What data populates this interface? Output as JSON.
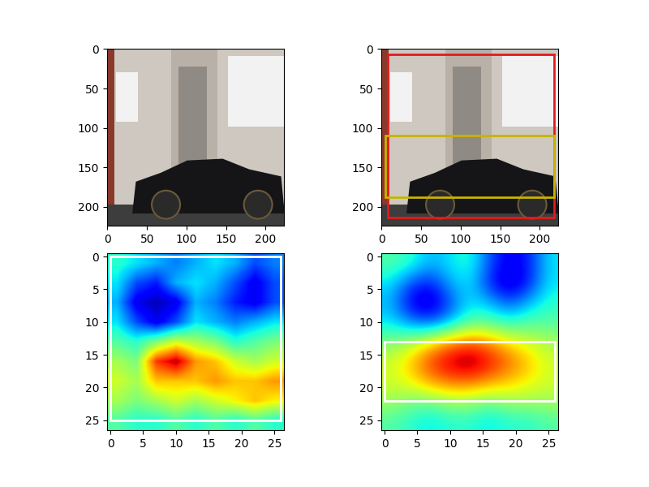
{
  "chart_data": [
    {
      "type": "image",
      "xlim": [
        -0.5,
        223.5
      ],
      "ylim": [
        223.5,
        -0.5
      ],
      "xticks": [
        0,
        50,
        100,
        150,
        200
      ],
      "yticks": [
        0,
        50,
        100,
        150,
        200
      ],
      "boxes": []
    },
    {
      "type": "image",
      "xlim": [
        -0.5,
        223.5
      ],
      "ylim": [
        223.5,
        -0.5
      ],
      "xticks": [
        0,
        50,
        100,
        150,
        200
      ],
      "yticks": [
        0,
        50,
        100,
        150,
        200
      ],
      "boxes": [
        {
          "x0": 8,
          "y0": 7,
          "x1": 218,
          "y1": 213,
          "color": "#e41a1c"
        },
        {
          "x0": 5,
          "y0": 110,
          "x1": 218,
          "y1": 188,
          "color": "#c8b400"
        }
      ]
    },
    {
      "type": "heatmap",
      "xlim": [
        -0.5,
        26.5
      ],
      "ylim": [
        26.5,
        -0.5
      ],
      "xticks": [
        0,
        5,
        10,
        15,
        20,
        25
      ],
      "yticks": [
        0,
        5,
        10,
        15,
        20,
        25
      ],
      "color_range": [
        0,
        1
      ],
      "cells": [
        [
          0.4,
          0.35,
          0.3,
          0.25,
          0.3,
          0.35,
          0.3,
          0.2,
          0.25
        ],
        [
          0.35,
          0.2,
          0.15,
          0.3,
          0.35,
          0.3,
          0.2,
          0.1,
          0.2
        ],
        [
          0.3,
          0.1,
          0.05,
          0.1,
          0.3,
          0.25,
          0.15,
          0.1,
          0.2
        ],
        [
          0.35,
          0.2,
          0.1,
          0.2,
          0.35,
          0.3,
          0.25,
          0.3,
          0.35
        ],
        [
          0.45,
          0.4,
          0.5,
          0.6,
          0.55,
          0.5,
          0.4,
          0.45,
          0.5
        ],
        [
          0.55,
          0.5,
          0.85,
          0.95,
          0.75,
          0.7,
          0.6,
          0.55,
          0.6
        ],
        [
          0.6,
          0.55,
          0.7,
          0.7,
          0.7,
          0.75,
          0.7,
          0.7,
          0.75
        ],
        [
          0.55,
          0.5,
          0.55,
          0.6,
          0.55,
          0.6,
          0.65,
          0.7,
          0.65
        ],
        [
          0.45,
          0.4,
          0.4,
          0.45,
          0.4,
          0.45,
          0.4,
          0.45,
          0.4
        ]
      ],
      "boxes": [
        {
          "x0": 0,
          "y0": 0,
          "x1": 26,
          "y1": 25,
          "color": "#ffffff"
        }
      ]
    },
    {
      "type": "heatmap",
      "xlim": [
        -0.5,
        26.5
      ],
      "ylim": [
        26.5,
        -0.5
      ],
      "xticks": [
        0,
        5,
        10,
        15,
        20,
        25
      ],
      "yticks": [
        0,
        5,
        10,
        15,
        20,
        25
      ],
      "color_range": [
        0,
        1
      ],
      "cells": [
        [
          0.45,
          0.4,
          0.3,
          0.35,
          0.4,
          0.2,
          0.1,
          0.15,
          0.35
        ],
        [
          0.35,
          0.2,
          0.15,
          0.3,
          0.35,
          0.15,
          0.05,
          0.15,
          0.35
        ],
        [
          0.3,
          0.1,
          0.05,
          0.2,
          0.35,
          0.3,
          0.2,
          0.3,
          0.4
        ],
        [
          0.35,
          0.25,
          0.2,
          0.3,
          0.45,
          0.45,
          0.4,
          0.45,
          0.45
        ],
        [
          0.5,
          0.55,
          0.65,
          0.75,
          0.8,
          0.75,
          0.65,
          0.6,
          0.55
        ],
        [
          0.6,
          0.7,
          0.85,
          0.95,
          1.0,
          0.9,
          0.8,
          0.7,
          0.6
        ],
        [
          0.6,
          0.65,
          0.75,
          0.8,
          0.8,
          0.75,
          0.7,
          0.65,
          0.6
        ],
        [
          0.55,
          0.5,
          0.5,
          0.55,
          0.55,
          0.5,
          0.55,
          0.55,
          0.55
        ],
        [
          0.45,
          0.4,
          0.35,
          0.4,
          0.4,
          0.35,
          0.4,
          0.4,
          0.45
        ]
      ],
      "boxes": [
        {
          "x0": 0,
          "y0": 13,
          "x1": 26,
          "y1": 22,
          "color": "#ffffff"
        }
      ]
    }
  ]
}
